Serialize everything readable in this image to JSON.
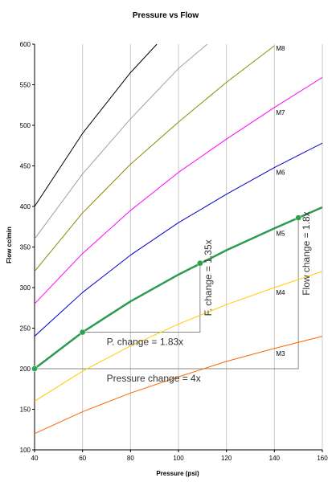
{
  "chart_data": {
    "type": "line",
    "title": "Pressure vs Flow",
    "xlabel": "Pressure (psi)",
    "ylabel": "Flow cc/min",
    "xlim": [
      40,
      160
    ],
    "ylim": [
      100,
      600
    ],
    "xticks": [
      40,
      60,
      80,
      100,
      120,
      140,
      160
    ],
    "yticks": [
      100,
      150,
      200,
      250,
      300,
      350,
      400,
      450,
      500,
      550,
      600
    ],
    "grid": "vertical",
    "legend": "none",
    "series": [
      {
        "name": "",
        "color": "#000000",
        "highlight": false,
        "x": [
          40,
          60,
          80,
          91
        ],
        "y": [
          400,
          490,
          565,
          600
        ]
      },
      {
        "name": "",
        "color": "#a0a0a0",
        "highlight": false,
        "x": [
          40,
          60,
          80,
          100,
          112
        ],
        "y": [
          360,
          440,
          508,
          570,
          600
        ]
      },
      {
        "name": "M8",
        "color": "#8b8b00",
        "highlight": false,
        "x": [
          40,
          60,
          80,
          100,
          120,
          140
        ],
        "y": [
          320,
          392,
          452,
          504,
          553,
          598
        ]
      },
      {
        "name": "M7",
        "color": "#ff00ff",
        "highlight": false,
        "x": [
          40,
          60,
          80,
          100,
          120,
          140,
          160
        ],
        "y": [
          280,
          342,
          395,
          442,
          483,
          522,
          559
        ]
      },
      {
        "name": "M6",
        "color": "#0000cc",
        "highlight": false,
        "x": [
          40,
          60,
          80,
          100,
          120,
          140,
          160
        ],
        "y": [
          240,
          294,
          340,
          380,
          415,
          448,
          478
        ]
      },
      {
        "name": "M5",
        "color": "#2e9a52",
        "highlight": true,
        "x": [
          40,
          60,
          80,
          100,
          120,
          140,
          160
        ],
        "y": [
          200,
          245,
          283,
          316,
          346,
          373,
          399
        ]
      },
      {
        "name": "M4",
        "color": "#ffcc00",
        "highlight": false,
        "x": [
          40,
          60,
          80,
          100,
          120,
          140,
          160
        ],
        "y": [
          160,
          197,
          228,
          255,
          279,
          300,
          320
        ]
      },
      {
        "name": "M3",
        "color": "#ff6600",
        "highlight": false,
        "x": [
          40,
          60,
          80,
          100,
          120,
          140,
          160
        ],
        "y": [
          120,
          147,
          170,
          190,
          209,
          225,
          240
        ]
      }
    ],
    "points": [
      {
        "x": 40,
        "y": 200
      },
      {
        "x": 60,
        "y": 245
      },
      {
        "x": 109,
        "y": 330
      },
      {
        "x": 150,
        "y": 386
      }
    ],
    "annotations": {
      "p_change": "P. change = 1.83x",
      "f_change": "F. change = 1.35x",
      "pressure_change": "Pressure change = 4x",
      "flow_change": "Flow change = 1.8x"
    }
  }
}
